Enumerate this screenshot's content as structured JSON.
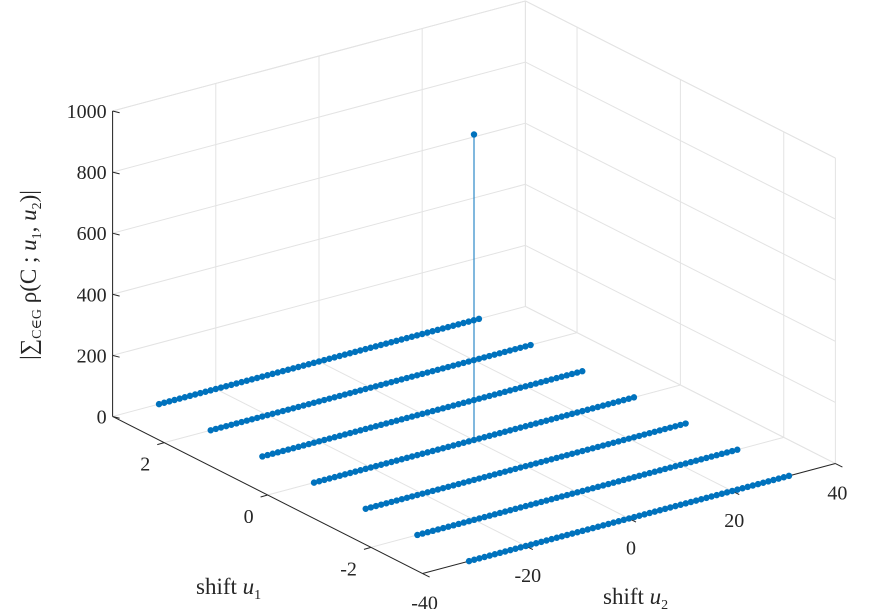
{
  "chart_data": {
    "type": "stem3",
    "view": "3d",
    "grid": true,
    "color": "#0072BD",
    "axes": {
      "u1": {
        "label": "shift",
        "symbol": "u",
        "subscript": "1",
        "range": [
          -3,
          3
        ],
        "ticks": [
          -2,
          0,
          2
        ],
        "tick_labels": [
          "-2",
          "0",
          "2"
        ]
      },
      "u2": {
        "label": "shift",
        "symbol": "u",
        "subscript": "2",
        "range": [
          -40,
          40
        ],
        "ticks": [
          -40,
          -20,
          0,
          20,
          40
        ],
        "tick_labels": [
          "-40",
          "-20",
          "0",
          "20",
          "40"
        ]
      },
      "z": {
        "label": "|∑C∈G ρ(C ; u1, u2)|",
        "range": [
          0,
          1000
        ],
        "ticks": [
          0,
          200,
          400,
          600,
          800,
          1000
        ],
        "tick_labels": [
          "0",
          "200",
          "400",
          "600",
          "800",
          "1000"
        ]
      }
    },
    "series": [
      {
        "description": "rows of near-zero values for u1 in -3..3 and u2 in -31..31",
        "u1_values": [
          -3,
          -2,
          -1,
          0,
          1,
          2,
          3
        ],
        "u2_range": [
          -31,
          31
        ],
        "u2_step": 1,
        "value": 0
      },
      {
        "description": "peak",
        "points": [
          {
            "u1": 0,
            "u2": 0,
            "value": 1000
          }
        ]
      }
    ]
  }
}
